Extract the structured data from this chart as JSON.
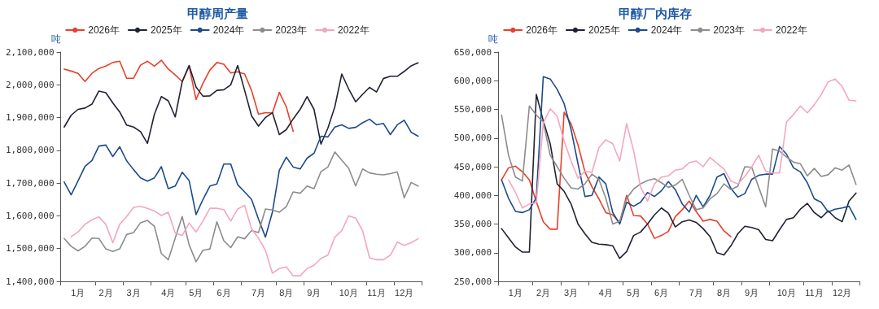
{
  "chart_data": [
    {
      "type": "line",
      "title": "甲醇周产量",
      "ylabel": "吨",
      "legend": "top",
      "grid": false,
      "marker": "none",
      "categories": [
        null,
        null,
        "1月",
        null,
        null,
        null,
        "2月",
        null,
        null,
        null,
        "3月",
        null,
        null,
        null,
        null,
        "4月",
        null,
        null,
        null,
        "5月",
        null,
        null,
        null,
        "6月",
        null,
        null,
        null,
        null,
        "7月",
        null,
        null,
        null,
        "8月",
        null,
        null,
        null,
        "9月",
        null,
        null,
        null,
        null,
        "10月",
        null,
        null,
        null,
        "11月",
        null,
        null,
        null,
        "12月",
        null,
        null
      ],
      "ylim": [
        1400000,
        2100000
      ],
      "yticks": [
        {
          "value": 1400000,
          "label": "1,400,000"
        },
        {
          "value": 1500000,
          "label": "1,500,000"
        },
        {
          "value": 1600000,
          "label": "1,600,000"
        },
        {
          "value": 1700000,
          "label": "1,700,000"
        },
        {
          "value": 1800000,
          "label": "1,800,000"
        },
        {
          "value": 1900000,
          "label": "1,900,000"
        },
        {
          "value": 2000000,
          "label": "2,000,000"
        },
        {
          "value": 2100000,
          "label": "2,100,000"
        }
      ],
      "series": [
        {
          "name": "2026年",
          "color": "#e8402a",
          "values": [
            2048000,
            2042000,
            2035000,
            2010000,
            2035000,
            2050000,
            2057000,
            2068000,
            2072000,
            2020000,
            2020000,
            2060000,
            2072000,
            2057000,
            2075000,
            2048000,
            2030000,
            2010000,
            2057000,
            1955000,
            2005000,
            2045000,
            2068000,
            2063000,
            2036000,
            2040000,
            2033000,
            1983000,
            1910000,
            1915000,
            1914000,
            1977000,
            1933000,
            1858000,
            null,
            null,
            null,
            null,
            null,
            null,
            null,
            null,
            null,
            null,
            null,
            null,
            null,
            null,
            null,
            null,
            null,
            null
          ]
        },
        {
          "name": "2025年",
          "color": "#1f2233",
          "values": [
            1871000,
            1907000,
            1925000,
            1929000,
            1941000,
            1981000,
            1976000,
            1945000,
            1917000,
            1877000,
            1871000,
            1857000,
            1821000,
            1910000,
            1964000,
            1951000,
            1902000,
            2009000,
            2059000,
            1993000,
            1965000,
            1966000,
            1983000,
            1985000,
            2000000,
            2059000,
            1983000,
            1905000,
            1874000,
            1900000,
            1915000,
            1848000,
            1863000,
            1896000,
            1925000,
            1964000,
            1925000,
            1819000,
            1868000,
            1933000,
            2033000,
            1987000,
            1948000,
            1971000,
            1992000,
            1978000,
            2019000,
            2026000,
            2026000,
            2041000,
            2058000,
            2067000
          ]
        },
        {
          "name": "2024年",
          "color": "#1c4a8c",
          "values": [
            1703000,
            1664000,
            1707000,
            1751000,
            1769000,
            1813000,
            1816000,
            1781000,
            1811000,
            1768000,
            1741000,
            1716000,
            1706000,
            1716000,
            1750000,
            1683000,
            1691000,
            1733000,
            1708000,
            1604000,
            1650000,
            1691000,
            1697000,
            1758000,
            1758000,
            1695000,
            1673000,
            1650000,
            1590000,
            1535000,
            1611000,
            1739000,
            1779000,
            1749000,
            1743000,
            1776000,
            1791000,
            1843000,
            1841000,
            1871000,
            1878000,
            1867000,
            1870000,
            1884000,
            1895000,
            1878000,
            1882000,
            1848000,
            1878000,
            1892000,
            1855000,
            1843000
          ]
        },
        {
          "name": "2023年",
          "color": "#8c8c8c",
          "values": [
            1531000,
            1507000,
            1493000,
            1507000,
            1532000,
            1531000,
            1499000,
            1491000,
            1499000,
            1543000,
            1549000,
            1579000,
            1586000,
            1568000,
            1485000,
            1466000,
            1532000,
            1598000,
            1512000,
            1460000,
            1495000,
            1499000,
            1582000,
            1524000,
            1503000,
            1536000,
            1530000,
            1555000,
            1549000,
            1621000,
            1618000,
            1611000,
            1628000,
            1673000,
            1669000,
            1691000,
            1683000,
            1735000,
            1749000,
            1795000,
            1770000,
            1745000,
            1691000,
            1743000,
            1731000,
            1727000,
            1725000,
            1729000,
            1734000,
            1655000,
            1702000,
            1691000
          ]
        },
        {
          "name": "2022年",
          "color": "#f4a6bd",
          "values": [
            null,
            1536000,
            1551000,
            1574000,
            1588000,
            1597000,
            1574000,
            1518000,
            1574000,
            1598000,
            1626000,
            1629000,
            1623000,
            1615000,
            1601000,
            1611000,
            1547000,
            1540000,
            1578000,
            1551000,
            1584000,
            1623000,
            1623000,
            1619000,
            1584000,
            1621000,
            1632000,
            1560000,
            1532000,
            1495000,
            1425000,
            1439000,
            1444000,
            1417000,
            1417000,
            1439000,
            1449000,
            1470000,
            1480000,
            1535000,
            1555000,
            1600000,
            1593000,
            1555000,
            1472000,
            1466000,
            1466000,
            1480000,
            1520000,
            1510000,
            1518000,
            1530000
          ]
        }
      ]
    },
    {
      "type": "line",
      "title": "甲醇厂内库存",
      "ylabel": "吨",
      "legend": "top",
      "grid": false,
      "marker": "none",
      "categories": [
        null,
        null,
        "1月",
        null,
        null,
        null,
        "2月",
        null,
        null,
        null,
        "3月",
        null,
        null,
        null,
        null,
        "4月",
        null,
        null,
        null,
        "5月",
        null,
        null,
        null,
        "6月",
        null,
        null,
        null,
        null,
        "7月",
        null,
        null,
        null,
        "8月",
        null,
        null,
        null,
        "9月",
        null,
        null,
        null,
        null,
        "10月",
        null,
        null,
        null,
        "11月",
        null,
        null,
        null,
        "12月",
        null,
        null
      ],
      "ylim": [
        250000,
        650000
      ],
      "yticks": [
        {
          "value": 250000,
          "label": "250,000"
        },
        {
          "value": 300000,
          "label": "300,000"
        },
        {
          "value": 350000,
          "label": "350,000"
        },
        {
          "value": 400000,
          "label": "400,000"
        },
        {
          "value": 450000,
          "label": "450,000"
        },
        {
          "value": 500000,
          "label": "500,000"
        },
        {
          "value": 550000,
          "label": "550,000"
        },
        {
          "value": 600000,
          "label": "600,000"
        },
        {
          "value": 650000,
          "label": "650,000"
        }
      ],
      "series": [
        {
          "name": "2026年",
          "color": "#e8402a",
          "values": [
            427000,
            448000,
            451000,
            441000,
            427000,
            389000,
            354000,
            341000,
            341000,
            545000,
            525000,
            488000,
            441000,
            415000,
            394000,
            370000,
            366000,
            352000,
            400000,
            365000,
            364000,
            350000,
            325000,
            330000,
            337000,
            363000,
            375000,
            390000,
            372000,
            355000,
            358000,
            355000,
            338000,
            328000,
            null,
            null,
            null,
            null,
            null,
            null,
            null,
            null,
            null,
            null,
            null,
            null,
            null,
            null,
            null,
            null,
            null,
            null
          ]
        },
        {
          "name": "2025年",
          "color": "#1f2233",
          "values": [
            342000,
            326000,
            310000,
            301000,
            301000,
            576000,
            530000,
            490000,
            420000,
            407000,
            385000,
            350000,
            333000,
            318000,
            315000,
            314000,
            312000,
            290000,
            302000,
            330000,
            336000,
            350000,
            366000,
            378000,
            369000,
            345000,
            354000,
            357000,
            353000,
            342000,
            328000,
            300000,
            296000,
            312000,
            333000,
            346000,
            344000,
            340000,
            323000,
            321000,
            340000,
            358000,
            361000,
            376000,
            386000,
            370000,
            361000,
            373000,
            361000,
            354000,
            390000,
            404000
          ]
        },
        {
          "name": "2024年",
          "color": "#1c4a8c",
          "values": [
            427000,
            395000,
            372000,
            370000,
            375000,
            396000,
            607000,
            603000,
            585000,
            560000,
            515000,
            455000,
            398000,
            400000,
            432000,
            420000,
            370000,
            350000,
            388000,
            381000,
            388000,
            405000,
            398000,
            408000,
            424000,
            410000,
            385000,
            371000,
            400000,
            380000,
            400000,
            432000,
            438000,
            412000,
            397000,
            403000,
            428000,
            435000,
            437000,
            437000,
            485000,
            472000,
            448000,
            441000,
            422000,
            394000,
            388000,
            371000,
            376000,
            378000,
            381000,
            358000
          ]
        },
        {
          "name": "2023年",
          "color": "#8c8c8c",
          "values": [
            540000,
            470000,
            432000,
            425000,
            556000,
            540000,
            528000,
            470000,
            450000,
            430000,
            413000,
            411000,
            420000,
            437000,
            428000,
            395000,
            350000,
            355000,
            395000,
            411000,
            420000,
            426000,
            429000,
            422000,
            414000,
            418000,
            428000,
            400000,
            375000,
            378000,
            394000,
            403000,
            420000,
            410000,
            416000,
            450000,
            449000,
            414000,
            380000,
            481000,
            477000,
            467000,
            458000,
            455000,
            434000,
            447000,
            433000,
            436000,
            448000,
            444000,
            453000,
            419000
          ]
        },
        {
          "name": "2022年",
          "color": "#f4a6bd",
          "values": [
            null,
            427000,
            405000,
            378000,
            385000,
            387000,
            526000,
            551000,
            538000,
            495000,
            460000,
            430000,
            442000,
            440000,
            483000,
            497000,
            490000,
            460000,
            525000,
            478000,
            415000,
            390000,
            420000,
            432000,
            434000,
            444000,
            446000,
            457000,
            460000,
            450000,
            466000,
            456000,
            446000,
            425000,
            420000,
            433000,
            450000,
            470000,
            442000,
            439000,
            439000,
            528000,
            541000,
            556000,
            544000,
            558000,
            576000,
            598000,
            603000,
            590000,
            566000,
            565000
          ]
        }
      ]
    }
  ]
}
